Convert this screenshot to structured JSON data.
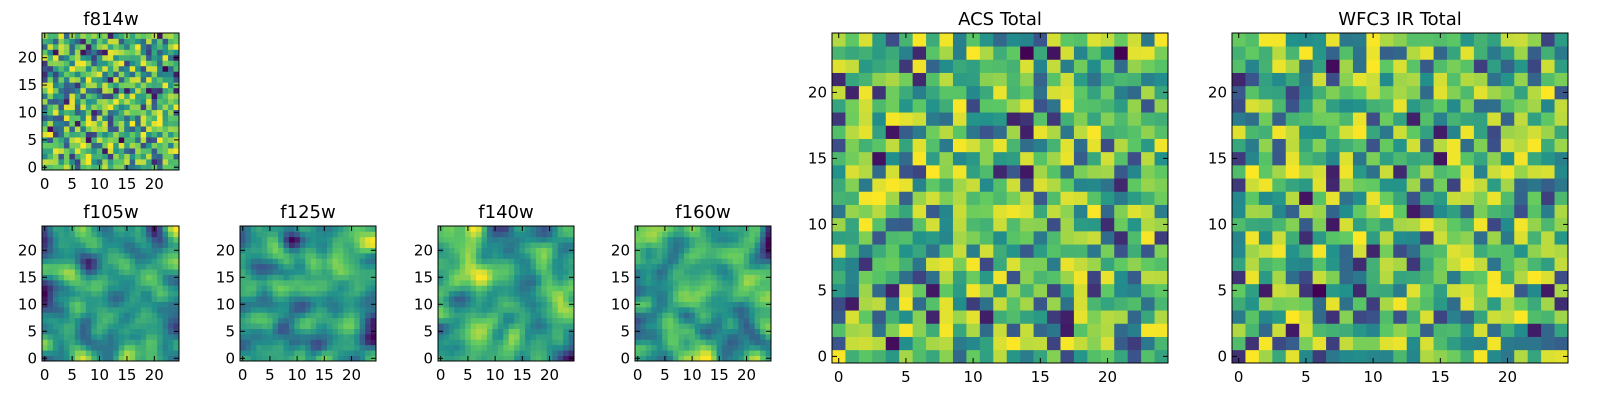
{
  "chart_data": [
    {
      "type": "heatmap",
      "title": "f814w",
      "xticks": [
        "0",
        "5",
        "10",
        "15",
        "20"
      ],
      "yticks": [
        "0",
        "5",
        "10",
        "15",
        "20"
      ],
      "grid_size": 25,
      "noise_seed": 11,
      "smooth": 0,
      "xlim": [
        -0.5,
        24.5
      ],
      "ylim": [
        -0.5,
        24.5
      ]
    },
    {
      "type": "heatmap",
      "title": "f105w",
      "xticks": [
        "0",
        "5",
        "10",
        "15",
        "20"
      ],
      "yticks": [
        "0",
        "5",
        "10",
        "15",
        "20"
      ],
      "grid_size": 25,
      "noise_seed": 23,
      "smooth": 2,
      "xlim": [
        -0.5,
        24.5
      ],
      "ylim": [
        -0.5,
        24.5
      ]
    },
    {
      "type": "heatmap",
      "title": "f125w",
      "xticks": [
        "0",
        "5",
        "10",
        "15",
        "20"
      ],
      "yticks": [
        "0",
        "5",
        "10",
        "15",
        "20"
      ],
      "grid_size": 25,
      "noise_seed": 37,
      "smooth": 2,
      "xlim": [
        -0.5,
        24.5
      ],
      "ylim": [
        -0.5,
        24.5
      ]
    },
    {
      "type": "heatmap",
      "title": "f140w",
      "xticks": [
        "0",
        "5",
        "10",
        "15",
        "20"
      ],
      "yticks": [
        "0",
        "5",
        "10",
        "15",
        "20"
      ],
      "grid_size": 25,
      "noise_seed": 41,
      "smooth": 2,
      "xlim": [
        -0.5,
        24.5
      ],
      "ylim": [
        -0.5,
        24.5
      ]
    },
    {
      "type": "heatmap",
      "title": "f160w",
      "xticks": [
        "0",
        "5",
        "10",
        "15",
        "20"
      ],
      "yticks": [
        "0",
        "5",
        "10",
        "15",
        "20"
      ],
      "grid_size": 25,
      "noise_seed": 53,
      "smooth": 2,
      "xlim": [
        -0.5,
        24.5
      ],
      "ylim": [
        -0.5,
        24.5
      ]
    },
    {
      "type": "heatmap",
      "title": "ACS Total",
      "xticks": [
        "0",
        "5",
        "10",
        "15",
        "20"
      ],
      "yticks": [
        "0",
        "5",
        "10",
        "15",
        "20"
      ],
      "grid_size": 25,
      "noise_seed": 67,
      "smooth": 0,
      "xlim": [
        -0.5,
        24.5
      ],
      "ylim": [
        -0.5,
        24.5
      ]
    },
    {
      "type": "heatmap",
      "title": "WFC3 IR Total",
      "xticks": [
        "0",
        "5",
        "10",
        "15",
        "20"
      ],
      "yticks": [
        "0",
        "5",
        "10",
        "15",
        "20"
      ],
      "grid_size": 25,
      "noise_seed": 79,
      "smooth": 0,
      "xlim": [
        -0.5,
        24.5
      ],
      "ylim": [
        -0.5,
        24.5
      ]
    }
  ],
  "colormap": {
    "name": "viridis",
    "stops": [
      "#440154",
      "#3b528b",
      "#21918c",
      "#5ec962",
      "#fde725"
    ]
  }
}
